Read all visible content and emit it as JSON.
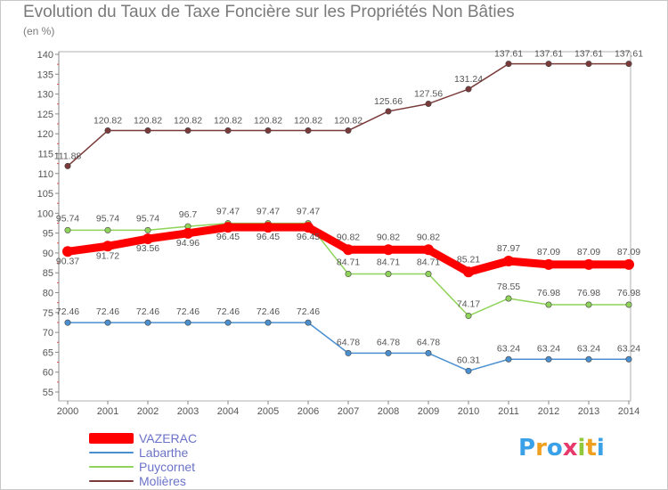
{
  "chart_data": {
    "type": "line",
    "title": "Evolution du Taux de Taxe Foncière sur les Propriétés Non Bâties",
    "subtitle": "(en %)",
    "xlabel": "",
    "ylabel": "(en %)",
    "ylim": [
      55,
      140
    ],
    "yticks": [
      "55",
      "60",
      "65",
      "70",
      "75",
      "80",
      "85",
      "90",
      "95",
      "100",
      "105",
      "110",
      "115",
      "120",
      "125",
      "130",
      "135",
      "140"
    ],
    "categories": [
      "2000",
      "2001",
      "2002",
      "2003",
      "2004",
      "2005",
      "2006",
      "2007",
      "2008",
      "2009",
      "2010",
      "2011",
      "2012",
      "2013",
      "2014"
    ],
    "grid": false,
    "legend_position": "bottom-left",
    "series": [
      {
        "name": "VAZERAC",
        "color": "#ff0000",
        "values": [
          90.37,
          91.72,
          93.56,
          94.96,
          96.45,
          96.45,
          96.45,
          90.82,
          90.82,
          90.82,
          85.21,
          87.97,
          87.09,
          87.09,
          87.09
        ],
        "labels": [
          "90.37",
          "91.72",
          "93.56",
          "94.96",
          "96.45",
          "96.45",
          "96.45",
          "90.82",
          "90.82",
          "90.82",
          "85.21",
          "87.97",
          "87.09",
          "87.09",
          "87.09"
        ]
      },
      {
        "name": "Labarthe",
        "color": "#4a8fcf",
        "values": [
          72.46,
          72.46,
          72.46,
          72.46,
          72.46,
          72.46,
          72.46,
          64.78,
          64.78,
          64.78,
          60.31,
          63.24,
          63.24,
          63.24,
          63.24
        ],
        "labels": [
          "72.46",
          "72.46",
          "72.46",
          "72.46",
          "72.46",
          "72.46",
          "72.46",
          "64.78",
          "64.78",
          "64.78",
          "60.31",
          "63.24",
          "63.24",
          "63.24",
          "63.24"
        ]
      },
      {
        "name": "Puycornet",
        "color": "#8fd35a",
        "values": [
          95.74,
          95.74,
          95.74,
          96.7,
          97.47,
          97.47,
          97.47,
          84.71,
          84.71,
          84.71,
          74.17,
          78.55,
          76.98,
          76.98,
          76.98
        ],
        "labels": [
          "95.74",
          "95.74",
          "95.74",
          "96.7",
          "97.47",
          "97.47",
          "97.47",
          "84.71",
          "84.71",
          "84.71",
          "74.17",
          "78.55",
          "76.98",
          "76.98",
          "76.98"
        ]
      },
      {
        "name": "Molières",
        "color": "#7a3a3a",
        "values": [
          111.88,
          120.82,
          120.82,
          120.82,
          120.82,
          120.82,
          120.82,
          120.82,
          125.66,
          127.56,
          131.24,
          137.61,
          137.61,
          137.61,
          137.61
        ],
        "labels": [
          "111.88",
          "120.82",
          "120.82",
          "120.82",
          "120.82",
          "120.82",
          "120.82",
          "120.82",
          "125.66",
          "127.56",
          "131.24",
          "137.61",
          "137.61",
          "137.61",
          "137.61"
        ]
      }
    ]
  },
  "legend": {
    "items": [
      {
        "name": "VAZERAC",
        "color": "#ff0000"
      },
      {
        "name": "Labarthe",
        "color": "#4a8fcf"
      },
      {
        "name": "Puycornet",
        "color": "#8fd35a"
      },
      {
        "name": "Molières",
        "color": "#7a3a3a"
      }
    ]
  },
  "logo": {
    "text": "Proxiti",
    "letters": [
      {
        "ch": "P",
        "color": "#3aa0e8"
      },
      {
        "ch": "r",
        "color": "#f0a020"
      },
      {
        "ch": "o",
        "color": "#3aa0e8"
      },
      {
        "ch": "x",
        "color": "#e83a6a"
      },
      {
        "ch": "i",
        "color": "#8fc93a"
      },
      {
        "ch": "t",
        "color": "#f0a020"
      },
      {
        "ch": "i",
        "color": "#3aa0e8"
      }
    ]
  }
}
